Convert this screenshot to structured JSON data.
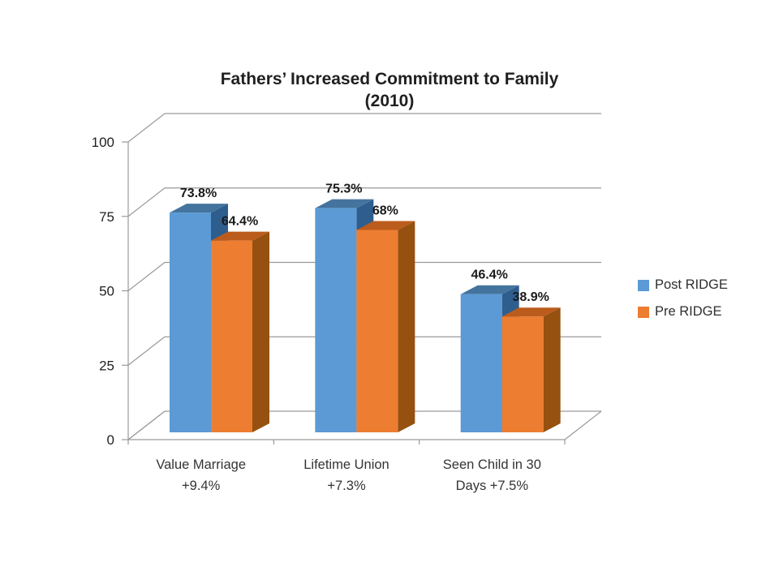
{
  "chart": {
    "title_line1": "Fathers’ Increased Commitment to Family",
    "title_line2": "(2010)"
  },
  "chart_data": {
    "type": "bar",
    "style": "3d-clustered-column",
    "title": "Fathers’ Increased Commitment to Family (2010)",
    "categories": [
      "Value Marriage +9.4%",
      "Lifetime Union +7.3%",
      "Seen Child in 30 Days +7.5%"
    ],
    "category_label_lines": [
      [
        "Value Marriage",
        "+9.4%"
      ],
      [
        "Lifetime Union",
        "+7.3%"
      ],
      [
        "Seen Child in 30",
        "Days +7.5%"
      ]
    ],
    "series": [
      {
        "name": "Post RIDGE",
        "values": [
          73.8,
          75.3,
          46.4
        ],
        "labels": [
          "73.8%",
          "75.3%",
          "46.4%"
        ],
        "color_front": "#5B9AD5",
        "color_top": "#44749E",
        "color_side": "#2E5E8E"
      },
      {
        "name": "Pre RIDGE",
        "values": [
          64.4,
          68,
          38.9
        ],
        "labels": [
          "64.4%",
          "68%",
          "38.9%"
        ],
        "color_front": "#ED7D31",
        "color_top": "#BB5C1D",
        "color_side": "#96500F"
      }
    ],
    "xlabel": "",
    "ylabel": "",
    "ylim": [
      0,
      100
    ],
    "yticks": [
      0,
      25,
      50,
      75,
      100
    ],
    "grid": true,
    "legend_position": "right",
    "axis_color": "#9a9a9a",
    "label_color": "#1a1a1a",
    "tick_label_color": "#1f1f1f"
  }
}
